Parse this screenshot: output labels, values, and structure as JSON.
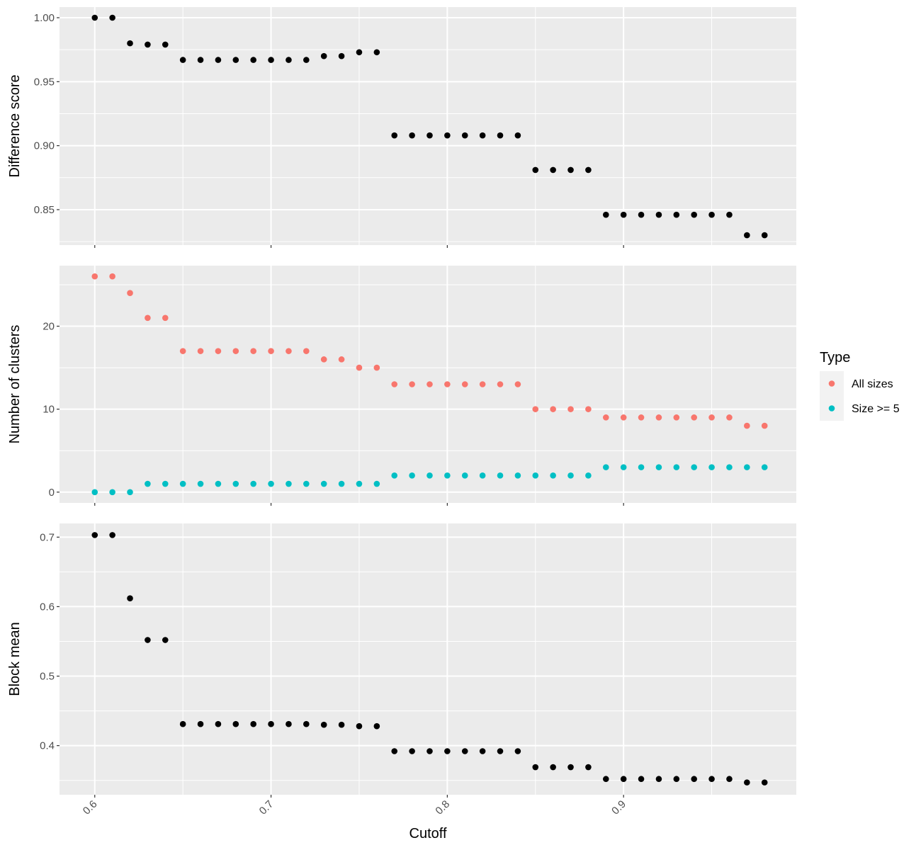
{
  "chart_data": {
    "type": "scatter",
    "xlabel": "Cutoff",
    "x_ticks": [
      "0.6",
      "0.7",
      "0.8",
      "0.9"
    ],
    "xlim": [
      0.58,
      0.998
    ],
    "x": [
      0.6,
      0.61,
      0.62,
      0.63,
      0.64,
      0.65,
      0.66,
      0.67,
      0.68,
      0.69,
      0.7,
      0.71,
      0.72,
      0.73,
      0.74,
      0.75,
      0.76,
      0.77,
      0.78,
      0.79,
      0.8,
      0.81,
      0.82,
      0.83,
      0.84,
      0.85,
      0.86,
      0.87,
      0.88,
      0.89,
      0.9,
      0.91,
      0.92,
      0.93,
      0.94,
      0.95,
      0.96,
      0.97,
      0.98
    ],
    "panels": [
      {
        "ylabel": "Difference score",
        "ylim": [
          0.8223,
          1.0083
        ],
        "y_ticks": [
          "0.85",
          "0.90",
          "0.95",
          "1.00"
        ],
        "series": [
          {
            "color": "#000000",
            "values": [
              1.0,
              1.0,
              0.98,
              0.979,
              0.979,
              0.967,
              0.967,
              0.967,
              0.967,
              0.967,
              0.967,
              0.967,
              0.967,
              0.97,
              0.97,
              0.973,
              0.973,
              0.908,
              0.908,
              0.908,
              0.908,
              0.908,
              0.908,
              0.908,
              0.908,
              0.881,
              0.881,
              0.881,
              0.881,
              0.846,
              0.846,
              0.846,
              0.846,
              0.846,
              0.846,
              0.846,
              0.846,
              0.83,
              0.83
            ]
          }
        ]
      },
      {
        "ylabel": "Number of clusters",
        "ylim": [
          -1.3,
          27.3
        ],
        "y_ticks": [
          "0",
          "10",
          "20"
        ],
        "legend": {
          "title": "Type",
          "position": "right",
          "labels": [
            "All sizes",
            "Size >= 5"
          ]
        },
        "series": [
          {
            "name": "All sizes",
            "color": "#F8766D",
            "values": [
              26,
              26,
              24,
              21,
              21,
              17,
              17,
              17,
              17,
              17,
              17,
              17,
              17,
              16,
              16,
              15,
              15,
              13,
              13,
              13,
              13,
              13,
              13,
              13,
              13,
              10,
              10,
              10,
              10,
              9,
              9,
              9,
              9,
              9,
              9,
              9,
              9,
              8,
              8
            ]
          },
          {
            "name": "Size >= 5",
            "color": "#00BFC4",
            "values": [
              0,
              0,
              0,
              1,
              1,
              1,
              1,
              1,
              1,
              1,
              1,
              1,
              1,
              1,
              1,
              1,
              1,
              2,
              2,
              2,
              2,
              2,
              2,
              2,
              2,
              2,
              2,
              2,
              2,
              3,
              3,
              3,
              3,
              3,
              3,
              3,
              3,
              3,
              3
            ]
          }
        ]
      },
      {
        "ylabel": "Block mean",
        "ylim": [
          0.3293,
          0.7197
        ],
        "y_ticks": [
          "0.4",
          "0.5",
          "0.6",
          "0.7"
        ],
        "series": [
          {
            "color": "#000000",
            "values": [
              0.703,
              0.703,
              0.612,
              0.552,
              0.552,
              0.431,
              0.431,
              0.431,
              0.431,
              0.431,
              0.431,
              0.431,
              0.431,
              0.43,
              0.43,
              0.428,
              0.428,
              0.392,
              0.392,
              0.392,
              0.392,
              0.392,
              0.392,
              0.392,
              0.392,
              0.369,
              0.369,
              0.369,
              0.369,
              0.352,
              0.352,
              0.352,
              0.352,
              0.352,
              0.352,
              0.352,
              0.352,
              0.347,
              0.347
            ]
          }
        ]
      }
    ]
  }
}
